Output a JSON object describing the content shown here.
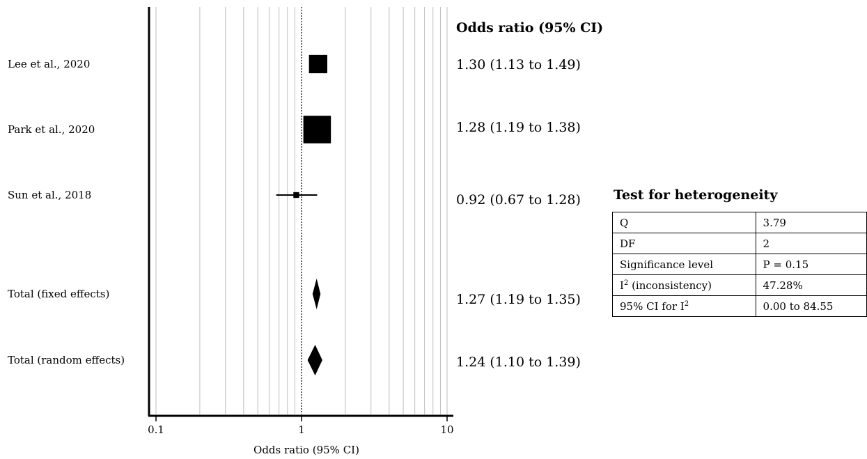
{
  "chart_data": {
    "type": "forest",
    "x_scale": "log",
    "xlim": [
      0.1,
      10
    ],
    "xticks": [
      0.1,
      1,
      10
    ],
    "tick_labels": [
      "0.1",
      "1",
      "10"
    ],
    "xlabel": "Odds ratio (95% CI)",
    "column_header": "Odds ratio (95% CI)",
    "reference_line": 1,
    "grid": true,
    "studies": [
      {
        "label": "Lee et al., 2020",
        "or": 1.3,
        "lower": 1.13,
        "upper": 1.49,
        "text": "1.30 (1.13 to 1.49)",
        "weight": 0.3,
        "kind": "study"
      },
      {
        "label": "Park et al., 2020",
        "or": 1.28,
        "lower": 1.19,
        "upper": 1.38,
        "text": "1.28 (1.19 to 1.38)",
        "weight": 0.68,
        "kind": "study"
      },
      {
        "label": "Sun et al., 2018",
        "or": 0.92,
        "lower": 0.67,
        "upper": 1.28,
        "text": "0.92 (0.67 to 1.28)",
        "weight": 0.03,
        "kind": "study"
      },
      {
        "label": "Total (fixed effects)",
        "or": 1.27,
        "lower": 1.19,
        "upper": 1.35,
        "text": "1.27 (1.19 to 1.35)",
        "kind": "pooled"
      },
      {
        "label": "Total (random effects)",
        "or": 1.24,
        "lower": 1.1,
        "upper": 1.39,
        "text": "1.24 (1.10 to 1.39)",
        "kind": "pooled"
      }
    ]
  },
  "heterogeneity": {
    "title": "Test for heterogeneity",
    "rows": [
      {
        "name": "Q",
        "value": "3.79"
      },
      {
        "name": "DF",
        "value": "2"
      },
      {
        "name": "Significance level",
        "value": "P = 0.15"
      },
      {
        "name": "I",
        "sup": "2",
        "suffix": " (inconsistency)",
        "value": "47.28%"
      },
      {
        "name": "95% CI for I",
        "sup": "2",
        "suffix": "",
        "value": "0.00 to 84.55"
      }
    ]
  }
}
